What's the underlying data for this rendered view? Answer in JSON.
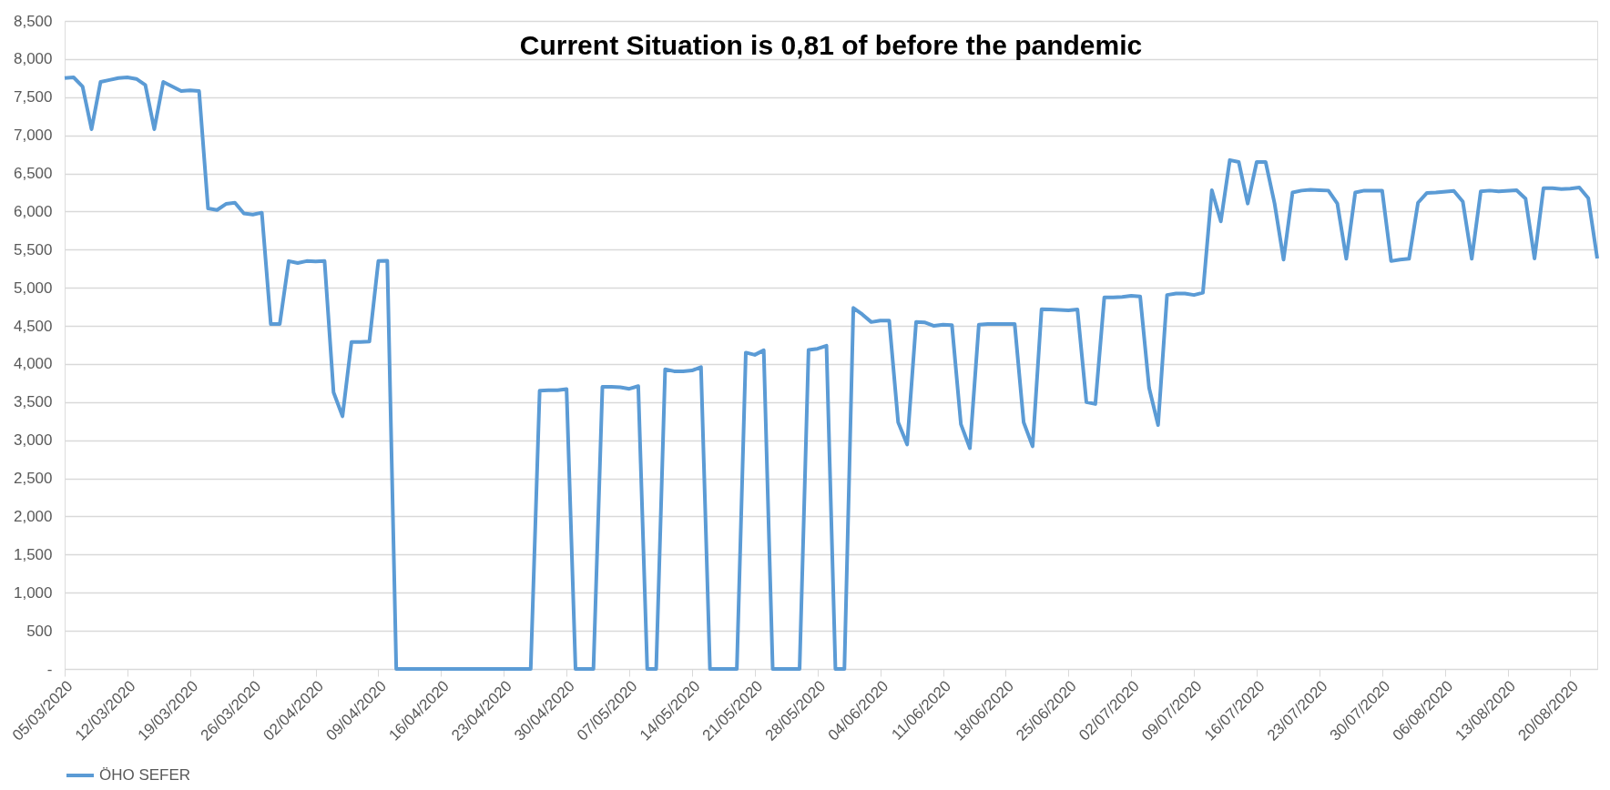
{
  "chart_data": {
    "type": "line",
    "title": "Current Situation is 0,81 of before the pandemic",
    "xlim": [
      "2020-03-05",
      "2020-08-23"
    ],
    "xticks": [
      {
        "value": "2020-03-05",
        "label": "05/03/2020"
      },
      {
        "value": "2020-03-12",
        "label": "12/03/2020"
      },
      {
        "value": "2020-03-19",
        "label": "19/03/2020"
      },
      {
        "value": "2020-03-26",
        "label": "26/03/2020"
      },
      {
        "value": "2020-04-02",
        "label": "02/04/2020"
      },
      {
        "value": "2020-04-09",
        "label": "09/04/2020"
      },
      {
        "value": "2020-04-16",
        "label": "16/04/2020"
      },
      {
        "value": "2020-04-23",
        "label": "23/04/2020"
      },
      {
        "value": "2020-04-30",
        "label": "30/04/2020"
      },
      {
        "value": "2020-05-07",
        "label": "07/05/2020"
      },
      {
        "value": "2020-05-14",
        "label": "14/05/2020"
      },
      {
        "value": "2020-05-21",
        "label": "21/05/2020"
      },
      {
        "value": "2020-05-28",
        "label": "28/05/2020"
      },
      {
        "value": "2020-06-04",
        "label": "04/06/2020"
      },
      {
        "value": "2020-06-11",
        "label": "11/06/2020"
      },
      {
        "value": "2020-06-18",
        "label": "18/06/2020"
      },
      {
        "value": "2020-06-25",
        "label": "25/06/2020"
      },
      {
        "value": "2020-07-02",
        "label": "02/07/2020"
      },
      {
        "value": "2020-07-09",
        "label": "09/07/2020"
      },
      {
        "value": "2020-07-16",
        "label": "16/07/2020"
      },
      {
        "value": "2020-07-23",
        "label": "23/07/2020"
      },
      {
        "value": "2020-07-30",
        "label": "30/07/2020"
      },
      {
        "value": "2020-08-06",
        "label": "06/08/2020"
      },
      {
        "value": "2020-08-13",
        "label": "13/08/2020"
      },
      {
        "value": "2020-08-20",
        "label": "20/08/2020"
      }
    ],
    "ylim": [
      0,
      8500
    ],
    "yticks": [
      {
        "value": 0,
        "label": "-"
      },
      {
        "value": 500,
        "label": "500"
      },
      {
        "value": 1000,
        "label": "1,000"
      },
      {
        "value": 1500,
        "label": "1,500"
      },
      {
        "value": 2000,
        "label": "2,000"
      },
      {
        "value": 2500,
        "label": "2,500"
      },
      {
        "value": 3000,
        "label": "3,000"
      },
      {
        "value": 3500,
        "label": "3,500"
      },
      {
        "value": 4000,
        "label": "4,000"
      },
      {
        "value": 4500,
        "label": "4,500"
      },
      {
        "value": 5000,
        "label": "5,000"
      },
      {
        "value": 5500,
        "label": "5,500"
      },
      {
        "value": 6000,
        "label": "6,000"
      },
      {
        "value": 6500,
        "label": "6,500"
      },
      {
        "value": 7000,
        "label": "7,000"
      },
      {
        "value": 7500,
        "label": "7,500"
      },
      {
        "value": 8000,
        "label": "8,000"
      },
      {
        "value": 8500,
        "label": "8,500"
      }
    ],
    "grid": "y",
    "legend": "bottom",
    "x": [
      "2020-03-05",
      "2020-03-06",
      "2020-03-07",
      "2020-03-08",
      "2020-03-09",
      "2020-03-10",
      "2020-03-11",
      "2020-03-12",
      "2020-03-13",
      "2020-03-14",
      "2020-03-15",
      "2020-03-16",
      "2020-03-17",
      "2020-03-18",
      "2020-03-19",
      "2020-03-20",
      "2020-03-21",
      "2020-03-22",
      "2020-03-23",
      "2020-03-24",
      "2020-03-25",
      "2020-03-26",
      "2020-03-27",
      "2020-03-28",
      "2020-03-29",
      "2020-03-30",
      "2020-03-31",
      "2020-04-01",
      "2020-04-02",
      "2020-04-03",
      "2020-04-04",
      "2020-04-05",
      "2020-04-06",
      "2020-04-07",
      "2020-04-08",
      "2020-04-09",
      "2020-04-10",
      "2020-04-11",
      "2020-04-26",
      "2020-04-27",
      "2020-04-28",
      "2020-04-29",
      "2020-04-30",
      "2020-05-01",
      "2020-05-03",
      "2020-05-04",
      "2020-05-05",
      "2020-05-06",
      "2020-05-07",
      "2020-05-08",
      "2020-05-09",
      "2020-05-10",
      "2020-05-11",
      "2020-05-12",
      "2020-05-13",
      "2020-05-14",
      "2020-05-15",
      "2020-05-16",
      "2020-05-19",
      "2020-05-20",
      "2020-05-21",
      "2020-05-22",
      "2020-05-23",
      "2020-05-26",
      "2020-05-27",
      "2020-05-28",
      "2020-05-29",
      "2020-05-30",
      "2020-05-31",
      "2020-06-01",
      "2020-06-02",
      "2020-06-03",
      "2020-06-04",
      "2020-06-05",
      "2020-06-06",
      "2020-06-07",
      "2020-06-08",
      "2020-06-09",
      "2020-06-10",
      "2020-06-11",
      "2020-06-12",
      "2020-06-13",
      "2020-06-14",
      "2020-06-15",
      "2020-06-16",
      "2020-06-19",
      "2020-06-20",
      "2020-06-21",
      "2020-06-22",
      "2020-06-23",
      "2020-06-25",
      "2020-06-26",
      "2020-06-27",
      "2020-06-28",
      "2020-06-29",
      "2020-06-30",
      "2020-07-01",
      "2020-07-02",
      "2020-07-03",
      "2020-07-04",
      "2020-07-05",
      "2020-07-06",
      "2020-07-07",
      "2020-07-08",
      "2020-07-09",
      "2020-07-10",
      "2020-07-11",
      "2020-07-12",
      "2020-07-13",
      "2020-07-14",
      "2020-07-15",
      "2020-07-16",
      "2020-07-17",
      "2020-07-18",
      "2020-07-19",
      "2020-07-20",
      "2020-07-21",
      "2020-07-22",
      "2020-07-23",
      "2020-07-24",
      "2020-07-25",
      "2020-07-26",
      "2020-07-27",
      "2020-07-28",
      "2020-07-30",
      "2020-07-31",
      "2020-08-01",
      "2020-08-02",
      "2020-08-03",
      "2020-08-04",
      "2020-08-05",
      "2020-08-07",
      "2020-08-08",
      "2020-08-09",
      "2020-08-10",
      "2020-08-11",
      "2020-08-12",
      "2020-08-14",
      "2020-08-15",
      "2020-08-16",
      "2020-08-17",
      "2020-08-18",
      "2020-08-19",
      "2020-08-20",
      "2020-08-21",
      "2020-08-22",
      "2020-08-23"
    ],
    "series": [
      {
        "name": "ÖHO SEFER",
        "color": "#5b9bd5",
        "values": [
          7750,
          7760,
          7640,
          7080,
          7700,
          7725,
          7750,
          7760,
          7740,
          7660,
          7080,
          7700,
          7640,
          7580,
          7590,
          7580,
          6040,
          6020,
          6100,
          6115,
          5975,
          5960,
          5985,
          4525,
          4525,
          5350,
          5325,
          5350,
          5345,
          5350,
          3630,
          3315,
          4290,
          4290,
          4295,
          5350,
          5355,
          0,
          0,
          3650,
          3655,
          3655,
          3670,
          0,
          0,
          3700,
          3700,
          3695,
          3675,
          3710,
          0,
          0,
          3930,
          3905,
          3905,
          3915,
          3960,
          0,
          0,
          4150,
          4120,
          4180,
          0,
          0,
          4185,
          4200,
          4240,
          0,
          0,
          4735,
          4650,
          4550,
          4570,
          4570,
          3235,
          2945,
          4550,
          4545,
          4500,
          4515,
          4510,
          3210,
          2895,
          4515,
          4525,
          4525,
          3235,
          2920,
          4720,
          4715,
          4705,
          4715,
          3500,
          3475,
          4875,
          4875,
          4880,
          4895,
          4885,
          3685,
          3200,
          4905,
          4925,
          4925,
          4905,
          4935,
          6280,
          5870,
          6675,
          6650,
          6105,
          6650,
          6650,
          6105,
          5370,
          6250,
          6275,
          6285,
          6280,
          6275,
          6105,
          5380,
          6250,
          6275,
          6275,
          5350,
          5370,
          5380,
          6115,
          6245,
          6250,
          6270,
          6130,
          5380,
          6265,
          6275,
          6265,
          6280,
          6170,
          5385,
          6305,
          6305,
          6295,
          6300,
          6315,
          6175,
          5385
        ]
      }
    ]
  }
}
